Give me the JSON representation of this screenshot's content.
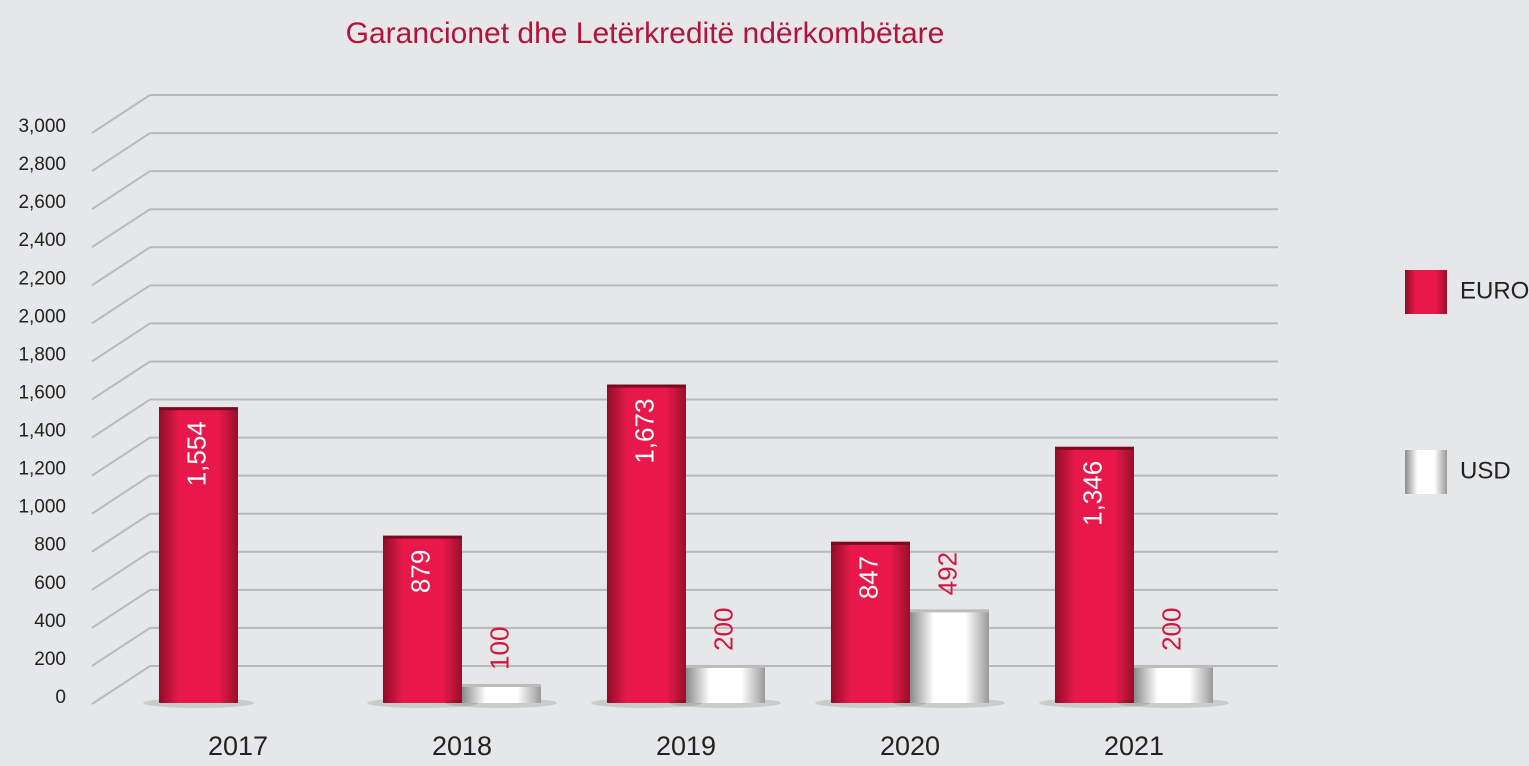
{
  "chart_data": {
    "type": "bar",
    "title": "Garancionet dhe Letërkreditë ndërkombëtare",
    "categories": [
      "2017",
      "2018",
      "2019",
      "2020",
      "2021"
    ],
    "series": [
      {
        "name": "EURO",
        "color": "#e8194a",
        "values": [
          1554,
          879,
          1673,
          847,
          1346
        ],
        "value_labels": [
          "1,554",
          "879",
          "1,673",
          "847",
          "1,346"
        ]
      },
      {
        "name": "USD",
        "color": "#ffffff",
        "values": [
          null,
          100,
          200,
          492,
          200
        ]
      }
    ],
    "ylim": [
      0,
      3000
    ],
    "yticks": [
      0,
      200,
      400,
      600,
      800,
      {
        "value": 1000,
        "label": "1,000"
      },
      {
        "value": 1200,
        "label": "1,200"
      },
      {
        "value": 1400,
        "label": "1,400"
      },
      {
        "value": 1600,
        "label": "1,600"
      },
      {
        "value": 1800,
        "label": "1,800"
      },
      {
        "value": 2000,
        "label": "2,000"
      },
      {
        "value": 2200,
        "label": "2,200"
      },
      {
        "value": 2400,
        "label": "2,400"
      },
      {
        "value": 2600,
        "label": "2,600"
      },
      {
        "value": 2800,
        "label": "2,800"
      },
      {
        "value": 3000,
        "label": "3,000"
      }
    ],
    "grid": true,
    "legend": "right"
  }
}
